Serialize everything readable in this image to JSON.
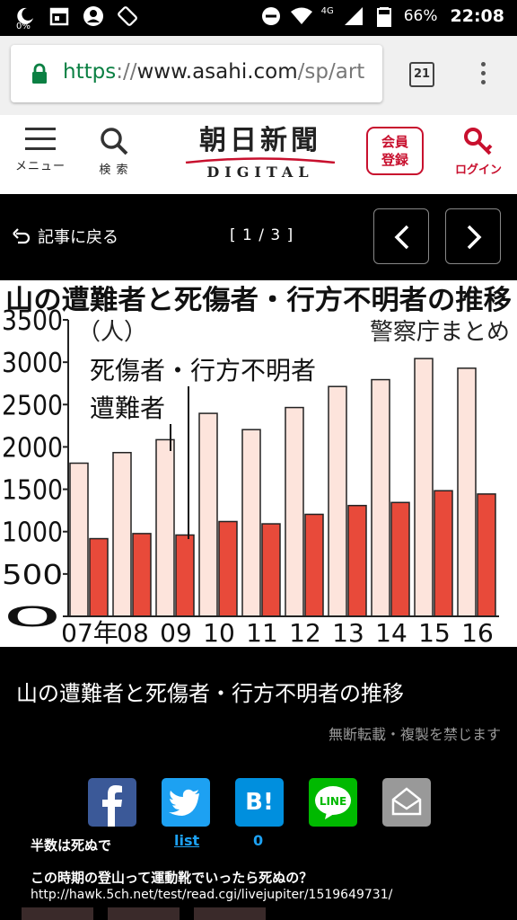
{
  "status_bar": {
    "battery_small": "0%",
    "network": "4G",
    "battery_percent": "66%",
    "time": "22:08"
  },
  "browser": {
    "url_scheme": "https",
    "url_sep": "://",
    "url_host": "www.asahi.com",
    "url_path": "/sp/art",
    "tab_count": "21"
  },
  "site_header": {
    "menu_label": "メニュー",
    "search_label": "検 索",
    "logo_jp": "朝日新聞",
    "logo_en": "DIGITAL",
    "register_line1": "会員",
    "register_line2": "登録",
    "login_label": "ログイン",
    "brand_color": "#c8102e"
  },
  "gallery": {
    "back_label": "記事に戻る",
    "page_indicator": "[ 1 / 3 ]"
  },
  "chart_data": {
    "type": "bar",
    "title": "山の遭難者と死傷者・行方不明者の推移",
    "source": "警察庁まとめ",
    "ylabel": "（人）",
    "categories": [
      "07年",
      "08",
      "09",
      "10",
      "11",
      "12",
      "13",
      "14",
      "15",
      "16"
    ],
    "ylim": [
      0,
      3500
    ],
    "yticks": [
      "0",
      "500",
      "1000",
      "1500",
      "2000",
      "2500",
      "3000",
      "3500"
    ],
    "series": [
      {
        "name": "遭難者",
        "color": "#fde4dc",
        "values": [
          1808,
          1933,
          2085,
          2396,
          2204,
          2465,
          2713,
          2794,
          3043,
          2929
        ]
      },
      {
        "name": "死傷者・行方不明者",
        "color": "#e84a3a",
        "values": [
          917,
          977,
          960,
          1119,
          1092,
          1204,
          1308,
          1344,
          1483,
          1444
        ]
      }
    ]
  },
  "caption": "山の遭難者と死傷者・行方不明者の推移",
  "copyright": "無断転載・複製を禁じます",
  "share": {
    "hatena_label": "B!"
  },
  "overlay": {
    "text_a": "半数は死ぬで",
    "list_link": "list",
    "count": "0",
    "question": "この時期の登山って運動靴でいったら死ぬの？",
    "url": "http://hawk.5ch.net/test/read.cgi/livejupiter/1519649731/"
  }
}
